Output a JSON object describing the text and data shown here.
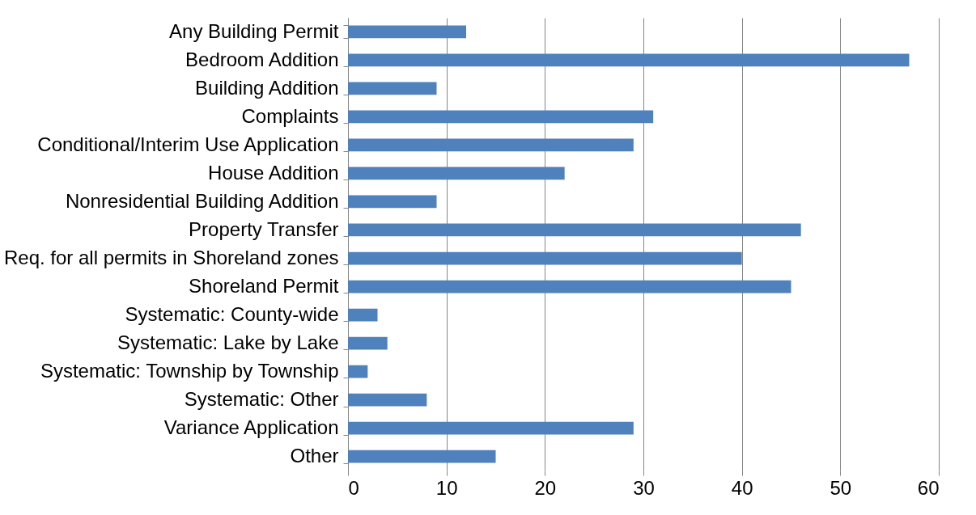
{
  "chart_data": {
    "type": "bar",
    "orientation": "horizontal",
    "categories": [
      "Any Building Permit",
      "Bedroom Addition",
      "Building Addition",
      "Complaints",
      "Conditional/Interim Use Application",
      "House Addition",
      "Nonresidential Building Addition",
      "Property Transfer",
      "Req. for all permits in Shoreland zones",
      "Shoreland Permit",
      "Systematic: County-wide",
      "Systematic: Lake by Lake",
      "Systematic: Township by Township",
      "Systematic: Other",
      "Variance Application",
      "Other"
    ],
    "values": [
      12,
      57,
      9,
      31,
      29,
      22,
      9,
      46,
      40,
      45,
      3,
      4,
      2,
      8,
      29,
      15
    ],
    "color": "#4f81bd",
    "xlim": [
      0,
      60
    ],
    "xticks": [
      0,
      10,
      20,
      30,
      40,
      50,
      60
    ],
    "grid": "x"
  }
}
